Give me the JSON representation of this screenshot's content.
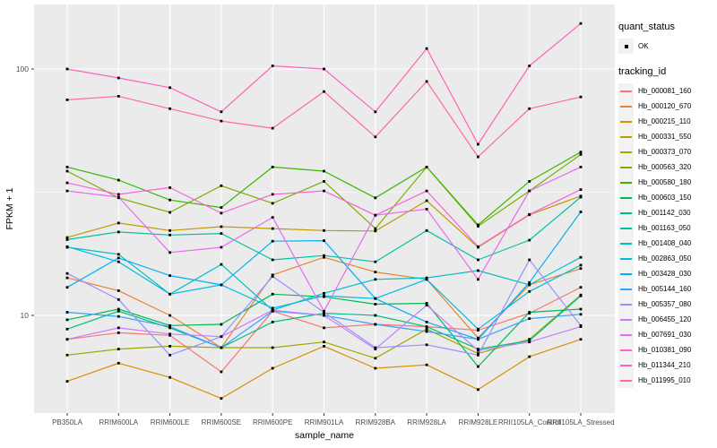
{
  "chart_data": {
    "type": "line",
    "title": "",
    "xlabel": "sample_name",
    "ylabel": "FPKM + 1",
    "y_scale": "log10",
    "ylim": [
      4.0,
      175.0
    ],
    "grid": true,
    "legend_position": "right",
    "y_ticks": [
      {
        "label": "100",
        "value": 100
      },
      {
        "label": "10",
        "value": 10
      }
    ],
    "y_minor": [
      31.62
    ],
    "x_categories": [
      "PB350LA",
      "RRIM600LA",
      "RRIM600LE",
      "RRIM600SE",
      "RRIM600PE",
      "RRIM901LA",
      "RRIM928BA",
      "RRIM928LA",
      "RRIM928LE",
      "RRII105LA_Control",
      "RRII105LA_Stressed"
    ],
    "legend": {
      "quant_status_title": "quant_status",
      "ok_label": "OK",
      "tracking_id_title": "tracking_id"
    },
    "colors": {
      "panel": "#EBEBEB",
      "grid": "#FFFFFF",
      "tick_text": "#4D4D4D",
      "axis_title": "#000000",
      "point": "#000000",
      "legend_key_bg": "#F2F2F2"
    },
    "series": [
      {
        "name": "Hb_000081_160",
        "color": "#F8766D",
        "values": [
          8.0,
          8.5,
          8.3,
          5.9,
          10.4,
          8.9,
          9.2,
          9.0,
          8.7,
          10.2,
          13.0
        ]
      },
      {
        "name": "Hb_000120_670",
        "color": "#EA8331",
        "values": [
          14.2,
          12.6,
          10.0,
          7.4,
          14.6,
          17.2,
          15.0,
          14.0,
          8.1,
          13.3,
          15.5
        ]
      },
      {
        "name": "Hb_000215_110",
        "color": "#D89000",
        "values": [
          5.4,
          6.4,
          5.6,
          4.6,
          6.1,
          7.5,
          6.1,
          6.3,
          5.0,
          6.8,
          8.0
        ]
      },
      {
        "name": "Hb_000331_550",
        "color": "#C09B00",
        "values": [
          20.7,
          23.7,
          22.1,
          22.9,
          22.5,
          22.1,
          22.0,
          29.2,
          18.9,
          25.6,
          30.5
        ]
      },
      {
        "name": "Hb_000373_070",
        "color": "#A3A500",
        "values": [
          6.9,
          7.3,
          7.5,
          7.4,
          7.4,
          7.8,
          6.7,
          8.8,
          7.0,
          8.0,
          12.1
        ]
      },
      {
        "name": "Hb_000563_320",
        "color": "#7CAE00",
        "values": [
          38.5,
          30.0,
          26.2,
          33.6,
          28.5,
          35.0,
          22.5,
          40.0,
          23.0,
          32.0,
          45.0
        ]
      },
      {
        "name": "Hb_000580_180",
        "color": "#39B600",
        "values": [
          40.0,
          35.4,
          29.4,
          27.4,
          40.0,
          38.5,
          30.0,
          40.0,
          23.3,
          35.0,
          46.0
        ]
      },
      {
        "name": "Hb_000603_150",
        "color": "#00BB4E",
        "values": [
          9.6,
          10.6,
          9.1,
          9.2,
          12.2,
          11.9,
          11.1,
          11.2,
          6.2,
          10.3,
          10.6
        ]
      },
      {
        "name": "Hb_001142_030",
        "color": "#00BF7D",
        "values": [
          8.8,
          10.4,
          8.9,
          7.4,
          9.4,
          10.2,
          10.0,
          9.0,
          7.3,
          7.9,
          12.0
        ]
      },
      {
        "name": "Hb_001163_050",
        "color": "#00C1A3",
        "values": [
          20.3,
          21.8,
          21.2,
          21.5,
          16.8,
          17.5,
          16.5,
          22.1,
          16.8,
          20.2,
          30.2
        ]
      },
      {
        "name": "Hb_001408_040",
        "color": "#00BFC4",
        "values": [
          18.9,
          17.7,
          12.2,
          16.1,
          10.5,
          12.3,
          14.0,
          14.2,
          15.2,
          13.3,
          17.2
        ]
      },
      {
        "name": "Hb_002863_050",
        "color": "#00BAE0",
        "values": [
          19.0,
          16.5,
          12.2,
          13.3,
          10.7,
          12.0,
          11.7,
          14.0,
          8.8,
          12.5,
          16.0
        ]
      },
      {
        "name": "Hb_003428_030",
        "color": "#00B0F6",
        "values": [
          13.0,
          17.1,
          14.5,
          13.3,
          20.0,
          20.1,
          11.7,
          9.4,
          8.0,
          13.6,
          26.3
        ]
      },
      {
        "name": "Hb_005144_160",
        "color": "#35A2FF",
        "values": [
          10.3,
          9.9,
          9.0,
          7.4,
          10.4,
          10.0,
          9.2,
          8.6,
          8.0,
          9.7,
          10.1
        ]
      },
      {
        "name": "Hb_005357_080",
        "color": "#9590FF",
        "values": [
          14.8,
          11.6,
          6.9,
          8.2,
          14.4,
          10.3,
          7.4,
          7.6,
          6.9,
          16.8,
          9.1
        ]
      },
      {
        "name": "Hb_006455_120",
        "color": "#C77CFF",
        "values": [
          8.0,
          8.9,
          8.4,
          8.2,
          10.5,
          10.0,
          7.3,
          11.0,
          7.2,
          7.8,
          9.0
        ]
      },
      {
        "name": "Hb_007691_030",
        "color": "#E76BF3",
        "values": [
          32.0,
          30.2,
          18.0,
          18.9,
          25.0,
          10.4,
          25.5,
          27.0,
          14.0,
          32.0,
          40.0
        ]
      },
      {
        "name": "Hb_010381_090",
        "color": "#FA62DB",
        "values": [
          34.5,
          31.0,
          33.0,
          26.0,
          31.0,
          32.0,
          25.5,
          32.0,
          19.0,
          25.7,
          32.4
        ]
      },
      {
        "name": "Hb_011344_210",
        "color": "#FF62BC",
        "values": [
          100.0,
          92.0,
          84.0,
          67.0,
          103.0,
          100.0,
          67.0,
          121.0,
          49.5,
          103.0,
          153.0
        ]
      },
      {
        "name": "Hb_011995_010",
        "color": "#FF6A98",
        "values": [
          75.0,
          77.5,
          69.0,
          61.5,
          57.5,
          81.0,
          53.0,
          89.0,
          44.0,
          69.0,
          77.0
        ]
      }
    ]
  }
}
